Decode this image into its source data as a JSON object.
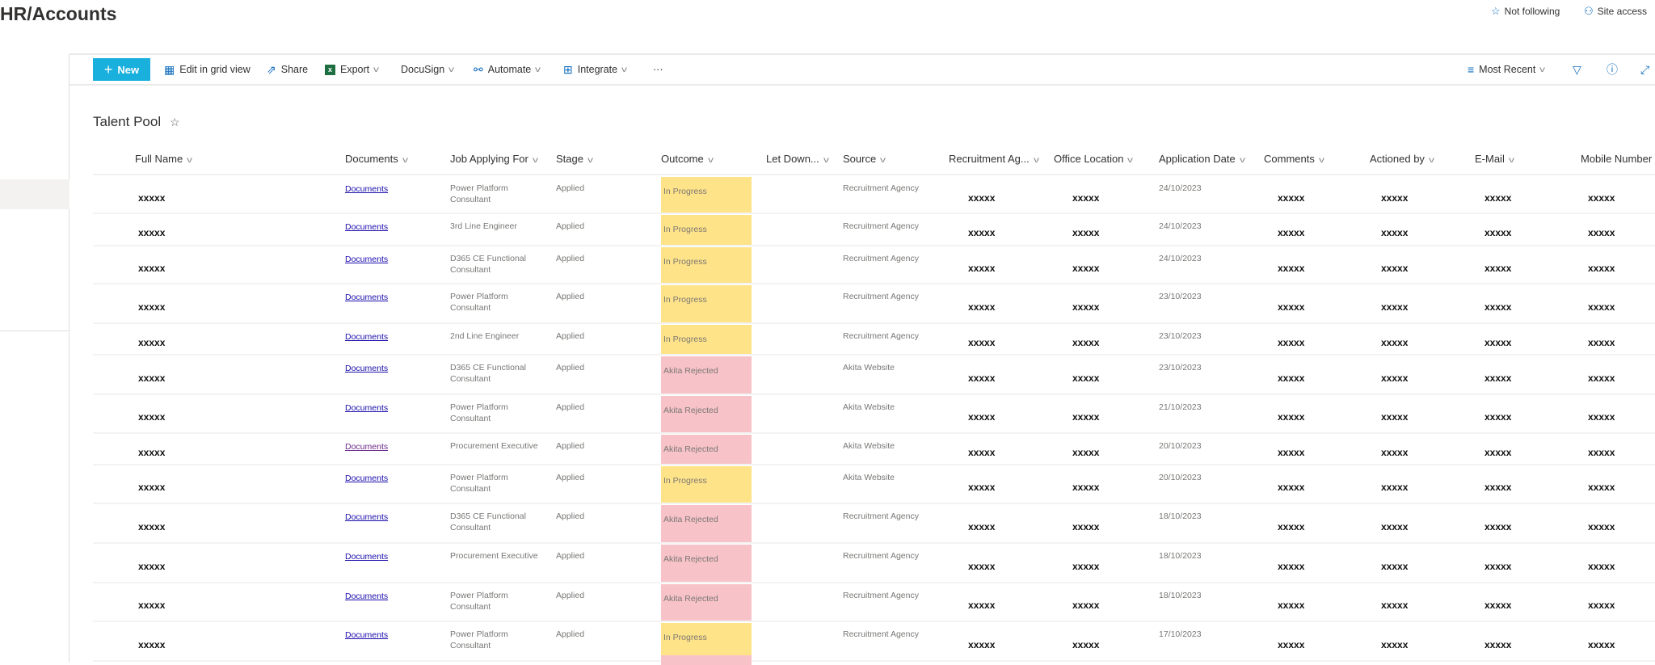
{
  "site": {
    "title": "HR/Accounts",
    "follow_label": "Not following",
    "site_access_label": "Site access"
  },
  "toolbar": {
    "new_label": "New",
    "edit_grid": "Edit in grid view",
    "share": "Share",
    "export": "Export",
    "docusign": "DocuSign",
    "automate": "Automate",
    "integrate": "Integrate",
    "more": "···",
    "view": "Most Recent"
  },
  "list": {
    "title": "Talent Pool"
  },
  "columns": [
    "Full Name",
    "Documents",
    "Job Applying For",
    "Stage",
    "Outcome",
    "Let Down...",
    "Source",
    "Recruitment Ag...",
    "Office Location",
    "Application Date",
    "Comments",
    "Actioned by",
    "E-Mail",
    "Mobile Number"
  ],
  "colors": {
    "in_progress": "#ffe388",
    "rejected": "#f8c3c8",
    "accent": "#1ab0de"
  },
  "rows": [
    {
      "name": "xxxxx",
      "documents": "Documents",
      "job": [
        "Power Platform",
        "Consultant"
      ],
      "stage": "Applied",
      "outcome": "In Progress",
      "source": "Recruitment Agency",
      "agency": "xxxxx",
      "office": "xxxxx",
      "date": "24/10/2023",
      "comments": "xxxxx",
      "actioned": "xxxxx",
      "email": "xxxxx",
      "mobile": "xxxxx"
    },
    {
      "name": "xxxxx",
      "documents": "Documents",
      "job": [
        "3rd Line Engineer"
      ],
      "stage": "Applied",
      "outcome": "In Progress",
      "source": "Recruitment Agency",
      "agency": "xxxxx",
      "office": "xxxxx",
      "date": "24/10/2023",
      "comments": "xxxxx",
      "actioned": "xxxxx",
      "email": "xxxxx",
      "mobile": "xxxxx"
    },
    {
      "name": "xxxxx",
      "documents": "Documents",
      "job": [
        "D365 CE Functional",
        "Consultant"
      ],
      "stage": "Applied",
      "outcome": "In Progress",
      "source": "Recruitment Agency",
      "agency": "xxxxx",
      "office": "xxxxx",
      "date": "24/10/2023",
      "comments": "xxxxx",
      "actioned": "xxxxx",
      "email": "xxxxx",
      "mobile": "xxxxx"
    },
    {
      "name": "xxxxx",
      "documents": "Documents",
      "job": [
        "Power Platform",
        "Consultant"
      ],
      "stage": "Applied",
      "outcome": "In Progress",
      "source": "Recruitment Agency",
      "agency": "xxxxx",
      "office": "xxxxx",
      "date": "23/10/2023",
      "comments": "xxxxx",
      "actioned": "xxxxx",
      "email": "xxxxx",
      "mobile": "xxxxx"
    },
    {
      "name": "xxxxx",
      "documents": "Documents",
      "job": [
        "2nd Line Engineer"
      ],
      "stage": "Applied",
      "outcome": "In Progress",
      "source": "Recruitment Agency",
      "agency": "xxxxx",
      "office": "xxxxx",
      "date": "23/10/2023",
      "comments": "xxxxx",
      "actioned": "xxxxx",
      "email": "xxxxx",
      "mobile": "xxxxx"
    },
    {
      "name": "xxxxx",
      "documents": "Documents",
      "job": [
        "D365 CE Functional",
        "Consultant"
      ],
      "stage": "Applied",
      "outcome": "Akita Rejected",
      "source": "Akita Website",
      "agency": "xxxxx",
      "office": "xxxxx",
      "date": "23/10/2023",
      "comments": "xxxxx",
      "actioned": "xxxxx",
      "email": "xxxxx",
      "mobile": "xxxxx"
    },
    {
      "name": "xxxxx",
      "documents": "Documents",
      "job": [
        "Power Platform",
        "Consultant"
      ],
      "stage": "Applied",
      "outcome": "Akita Rejected",
      "source": "Akita Website",
      "agency": "xxxxx",
      "office": "xxxxx",
      "date": "21/10/2023",
      "comments": "xxxxx",
      "actioned": "xxxxx",
      "email": "xxxxx",
      "mobile": "xxxxx"
    },
    {
      "name": "xxxxx",
      "documents": "Documents",
      "job": [
        "Procurement Executive"
      ],
      "stage": "Applied",
      "outcome": "Akita Rejected",
      "source": "Akita Website",
      "agency": "xxxxx",
      "office": "xxxxx",
      "date": "20/10/2023",
      "comments": "xxxxx",
      "actioned": "xxxxx",
      "email": "xxxxx",
      "mobile": "xxxxx",
      "visited": true
    },
    {
      "name": "xxxxx",
      "documents": "Documents",
      "job": [
        "Power Platform",
        "Consultant"
      ],
      "stage": "Applied",
      "outcome": "In Progress",
      "source": "Akita Website",
      "agency": "xxxxx",
      "office": "xxxxx",
      "date": "20/10/2023",
      "comments": "xxxxx",
      "actioned": "xxxxx",
      "email": "xxxxx",
      "mobile": "xxxxx"
    },
    {
      "name": "xxxxx",
      "documents": "Documents",
      "job": [
        "D365 CE Functional",
        "Consultant"
      ],
      "stage": "Applied",
      "outcome": "Akita Rejected",
      "source": "Recruitment Agency",
      "agency": "xxxxx",
      "office": "xxxxx",
      "date": "18/10/2023",
      "comments": "xxxxx",
      "actioned": "xxxxx",
      "email": "xxxxx",
      "mobile": "xxxxx"
    },
    {
      "name": "xxxxx",
      "documents": "Documents",
      "job": [
        "Procurement Executive"
      ],
      "stage": "Applied",
      "outcome": "Akita Rejected",
      "source": "Recruitment Agency",
      "agency": "xxxxx",
      "office": "xxxxx",
      "date": "18/10/2023",
      "comments": "xxxxx",
      "actioned": "xxxxx",
      "email": "xxxxx",
      "mobile": "xxxxx"
    },
    {
      "name": "xxxxx",
      "documents": "Documents",
      "job": [
        "Power Platform",
        "Consultant"
      ],
      "stage": "Applied",
      "outcome": "Akita Rejected",
      "source": "Recruitment Agency",
      "agency": "xxxxx",
      "office": "xxxxx",
      "date": "18/10/2023",
      "comments": "xxxxx",
      "actioned": "xxxxx",
      "email": "xxxxx",
      "mobile": "xxxxx"
    },
    {
      "name": "xxxxx",
      "documents": "Documents",
      "job": [
        "Power Platform",
        "Consultant"
      ],
      "stage": "Applied",
      "outcome": "In Progress",
      "source": "Recruitment Agency",
      "agency": "xxxxx",
      "office": "xxxxx",
      "date": "17/10/2023",
      "comments": "xxxxx",
      "actioned": "xxxxx",
      "email": "xxxxx",
      "mobile": "xxxxx"
    }
  ]
}
